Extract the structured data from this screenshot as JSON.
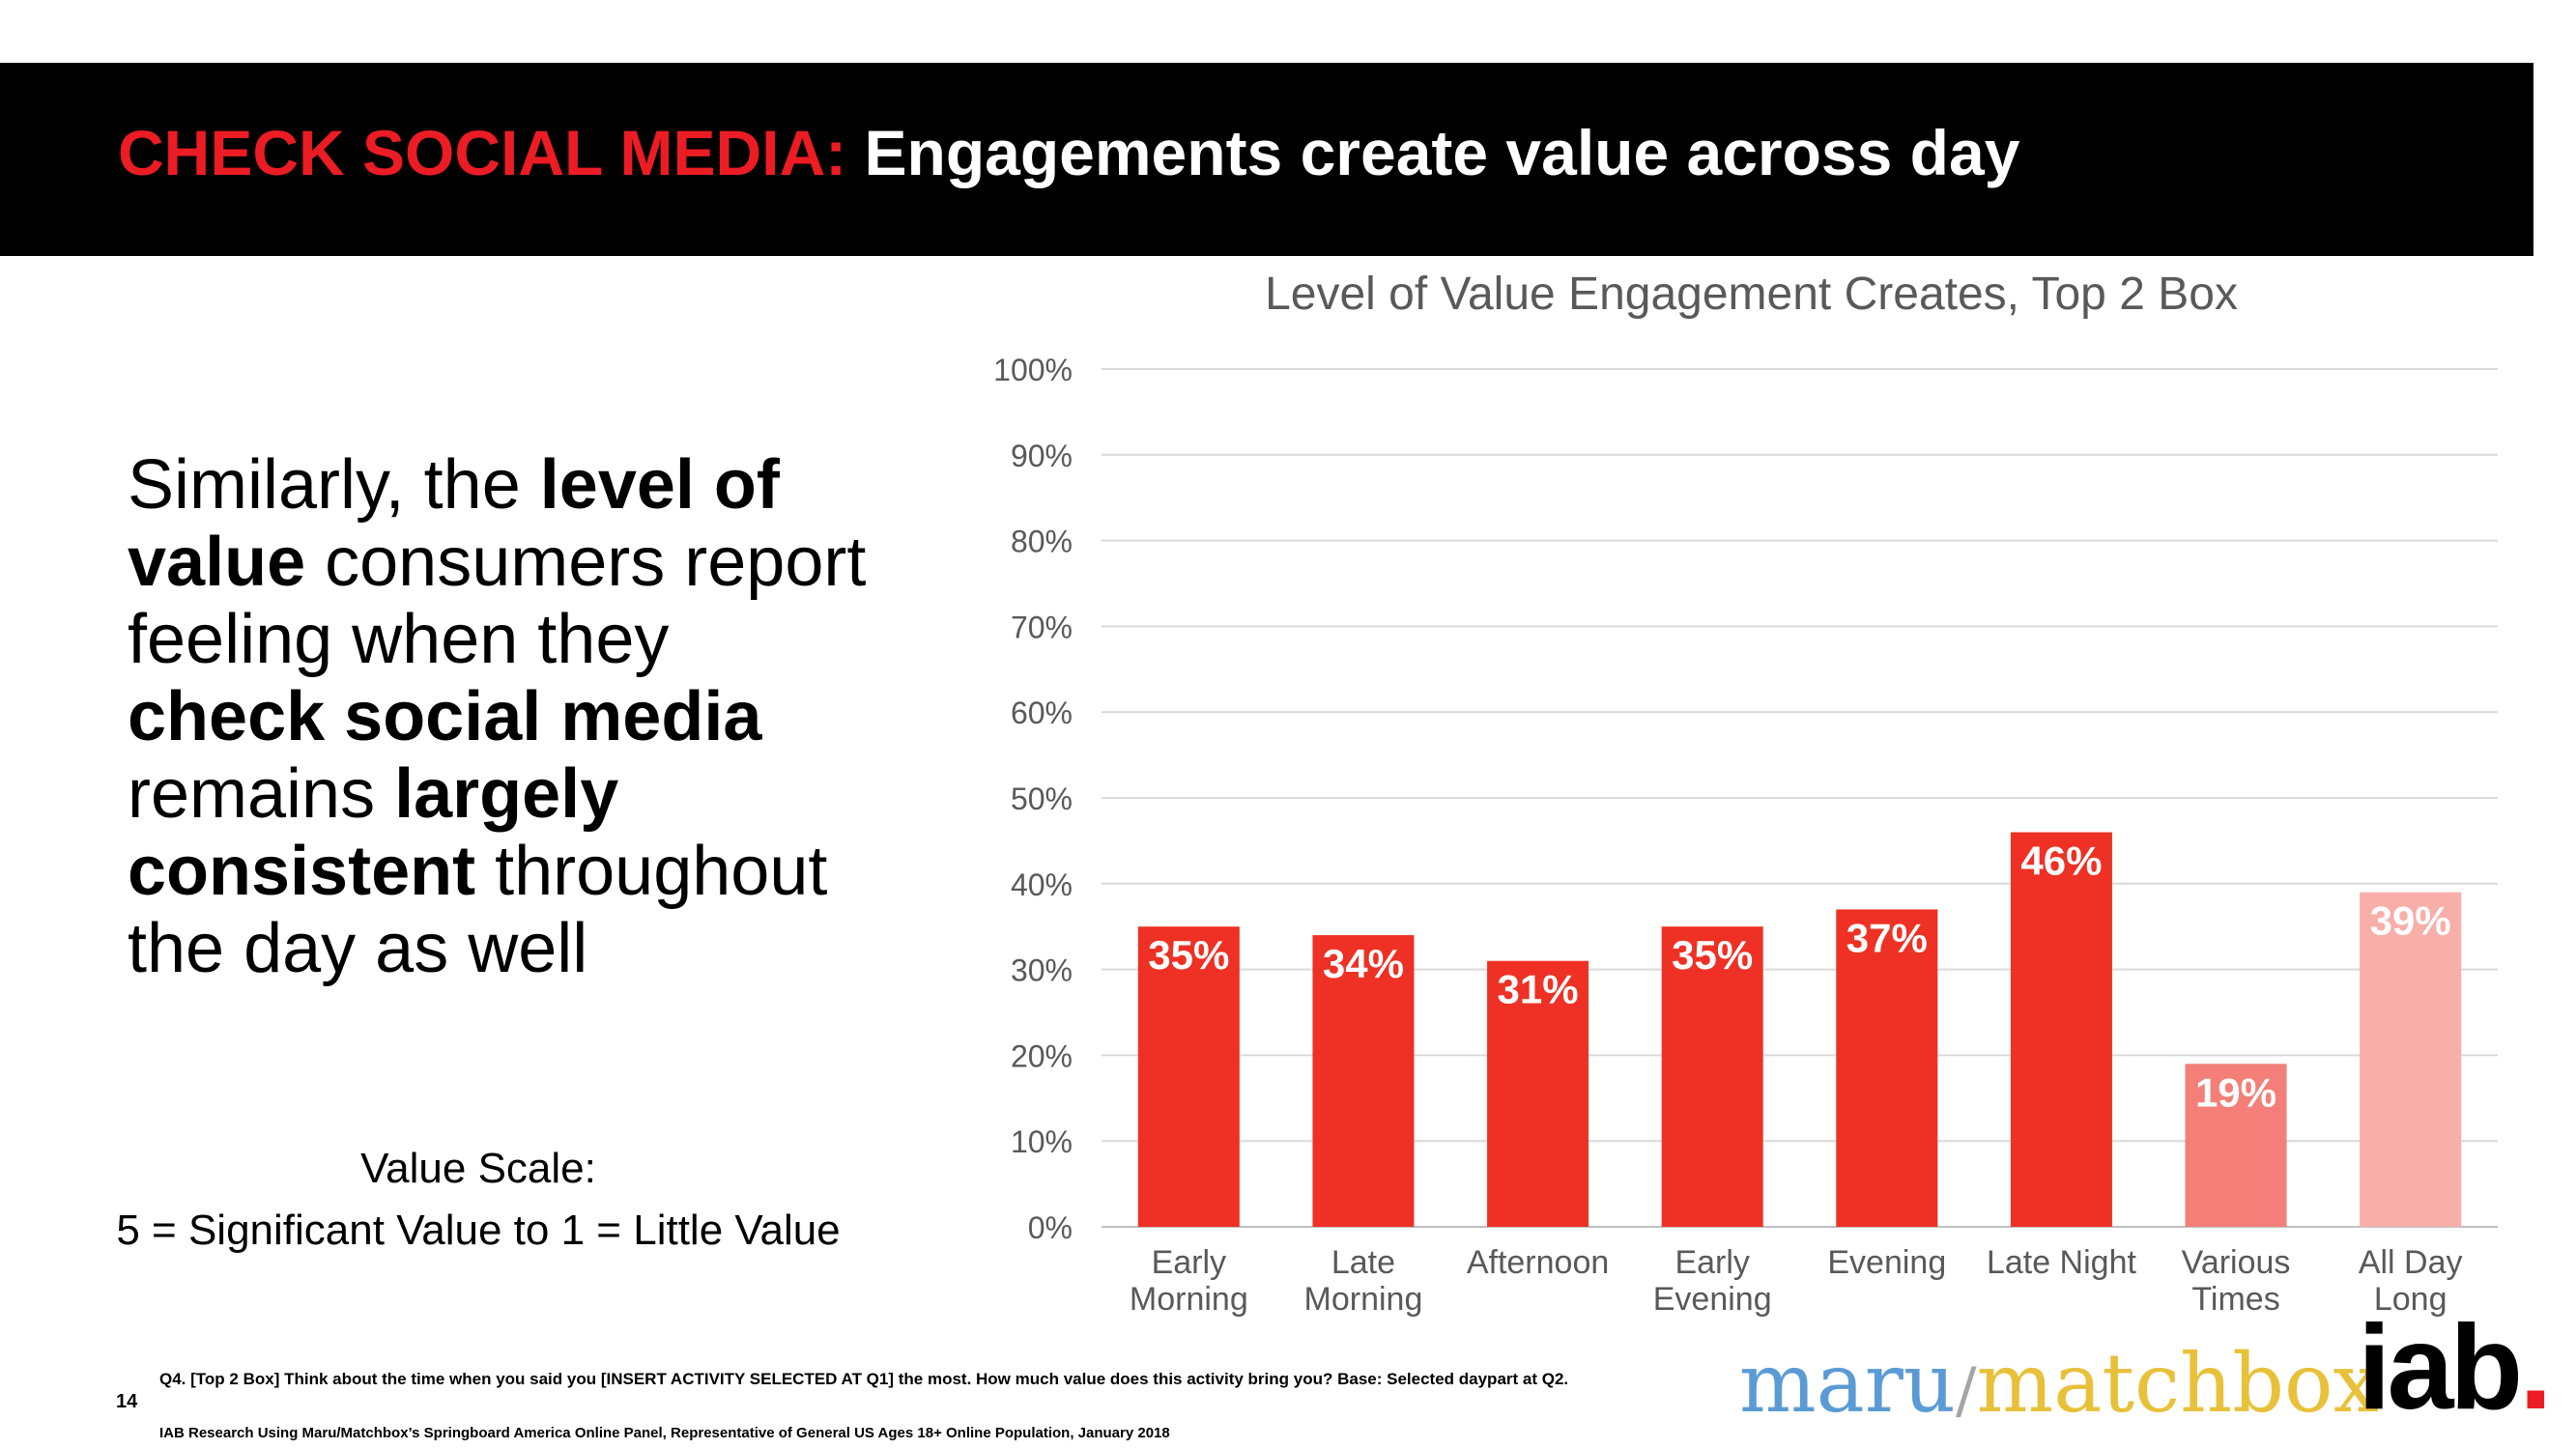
{
  "header": {
    "title_accent": "CHECK SOCIAL MEDIA:",
    "title_main": "Engagements create value across day"
  },
  "body": {
    "p1": "Similarly, the ",
    "b1": "level of value",
    "p2": " consumers report feeling when they ",
    "b2": "check social media",
    "p3": " remains ",
    "b3": "largely consistent",
    "p4": " throughout the day as well"
  },
  "scale": {
    "line1": "Value Scale:",
    "line2": "5 = Significant Value to 1 = Little Value"
  },
  "chart_data": {
    "type": "bar",
    "title": "Level of Value Engagement Creates, Top 2 Box",
    "xlabel": "",
    "ylabel": "",
    "ylim": [
      0,
      100
    ],
    "yticks": [
      "0%",
      "10%",
      "20%",
      "30%",
      "40%",
      "50%",
      "60%",
      "70%",
      "80%",
      "90%",
      "100%"
    ],
    "grid": true,
    "categories": [
      [
        "Early",
        "Morning"
      ],
      [
        "Late",
        "Morning"
      ],
      [
        "Afternoon"
      ],
      [
        "Early",
        "Evening"
      ],
      [
        "Evening"
      ],
      [
        "Late Night"
      ],
      [
        "Various",
        "Times"
      ],
      [
        "All Day",
        "Long"
      ]
    ],
    "values": [
      35,
      34,
      31,
      35,
      37,
      46,
      19,
      39
    ],
    "value_labels": [
      "35%",
      "34%",
      "31%",
      "35%",
      "37%",
      "46%",
      "19%",
      "39%"
    ],
    "colors": [
      "#ee3124",
      "#ee3124",
      "#ee3124",
      "#ee3124",
      "#ee3124",
      "#ee3124",
      "#f37f78",
      "#f8aea9"
    ]
  },
  "footer": {
    "page_number": "14",
    "note": "Q4. [Top 2 Box] Think about the time when you said you [INSERT ACTIVITY SELECTED AT Q1] the most.  How much value does this activity bring you? Base: Selected daypart at Q2.",
    "source": "IAB Research Using Maru/Matchbox’s Springboard America Online Panel, Representative of General US Ages 18+ Online Population, January 2018"
  },
  "logos": {
    "maru": "maru",
    "slash": "/",
    "matchbox": "matchbox",
    "iab": "iab",
    "iab_dot": "."
  }
}
